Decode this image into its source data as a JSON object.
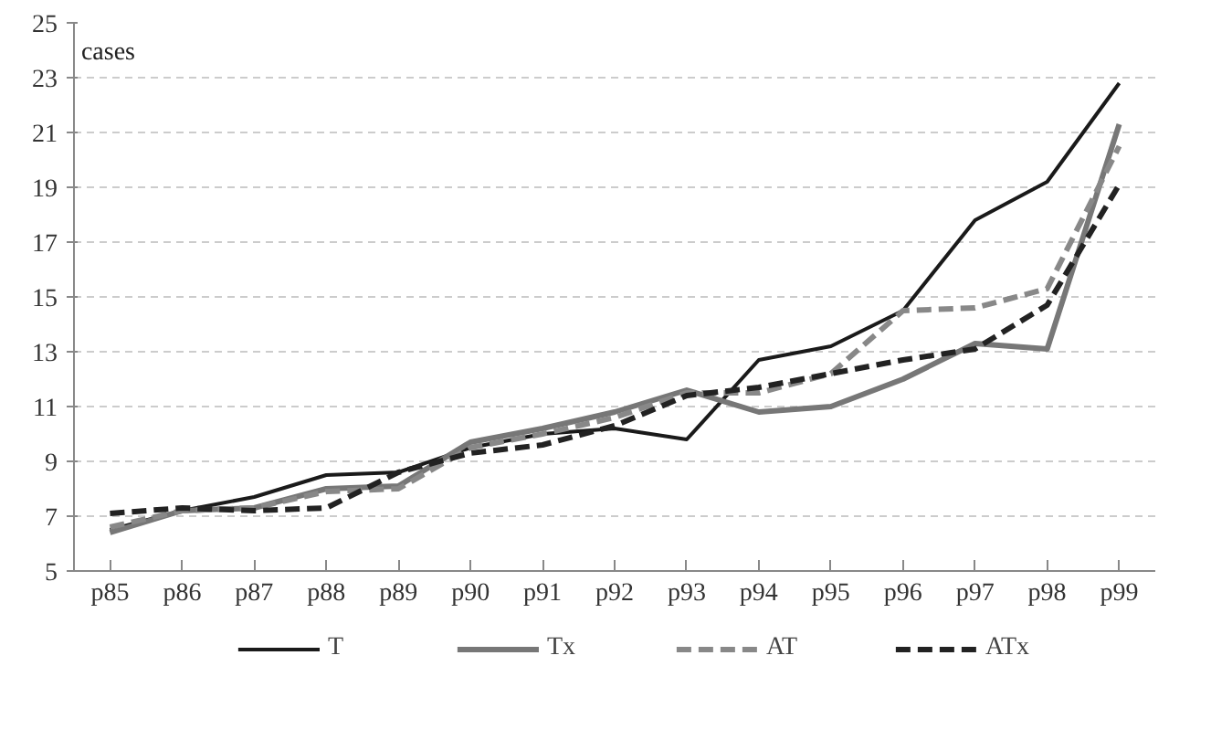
{
  "chart_data": {
    "type": "line",
    "ylabel": "cases",
    "categories": [
      "p85",
      "p86",
      "p87",
      "p88",
      "p89",
      "p90",
      "p91",
      "p92",
      "p93",
      "p94",
      "p95",
      "p96",
      "p97",
      "p98",
      "p99"
    ],
    "series": [
      {
        "name": "T",
        "color": "#1a1a1a",
        "line_style": "solid",
        "values": [
          6.5,
          7.2,
          7.7,
          8.5,
          8.6,
          9.5,
          10.0,
          10.2,
          9.8,
          12.7,
          13.2,
          14.5,
          17.8,
          19.2,
          22.8
        ]
      },
      {
        "name": "Tx",
        "color": "#777777",
        "line_style": "solid",
        "values": [
          6.4,
          7.2,
          7.3,
          8.0,
          8.1,
          9.7,
          10.2,
          10.8,
          11.6,
          10.8,
          11.0,
          12.0,
          13.3,
          13.1,
          21.3
        ]
      },
      {
        "name": "AT",
        "color": "#888888",
        "line_style": "dashed",
        "values": [
          6.6,
          7.2,
          7.3,
          7.9,
          8.0,
          9.5,
          10.0,
          10.6,
          11.5,
          11.5,
          12.2,
          14.5,
          14.6,
          15.3,
          20.5
        ]
      },
      {
        "name": "ATx",
        "color": "#222222",
        "line_style": "dashed",
        "values": [
          7.1,
          7.3,
          7.2,
          7.3,
          8.6,
          9.3,
          9.6,
          10.3,
          11.4,
          11.7,
          12.2,
          12.7,
          13.1,
          14.7,
          19.1
        ]
      }
    ],
    "ylim": [
      5,
      25
    ],
    "yticks": [
      5,
      7,
      9,
      11,
      13,
      15,
      17,
      19,
      21,
      23,
      25
    ],
    "grid": "y",
    "legend": "bottom"
  }
}
